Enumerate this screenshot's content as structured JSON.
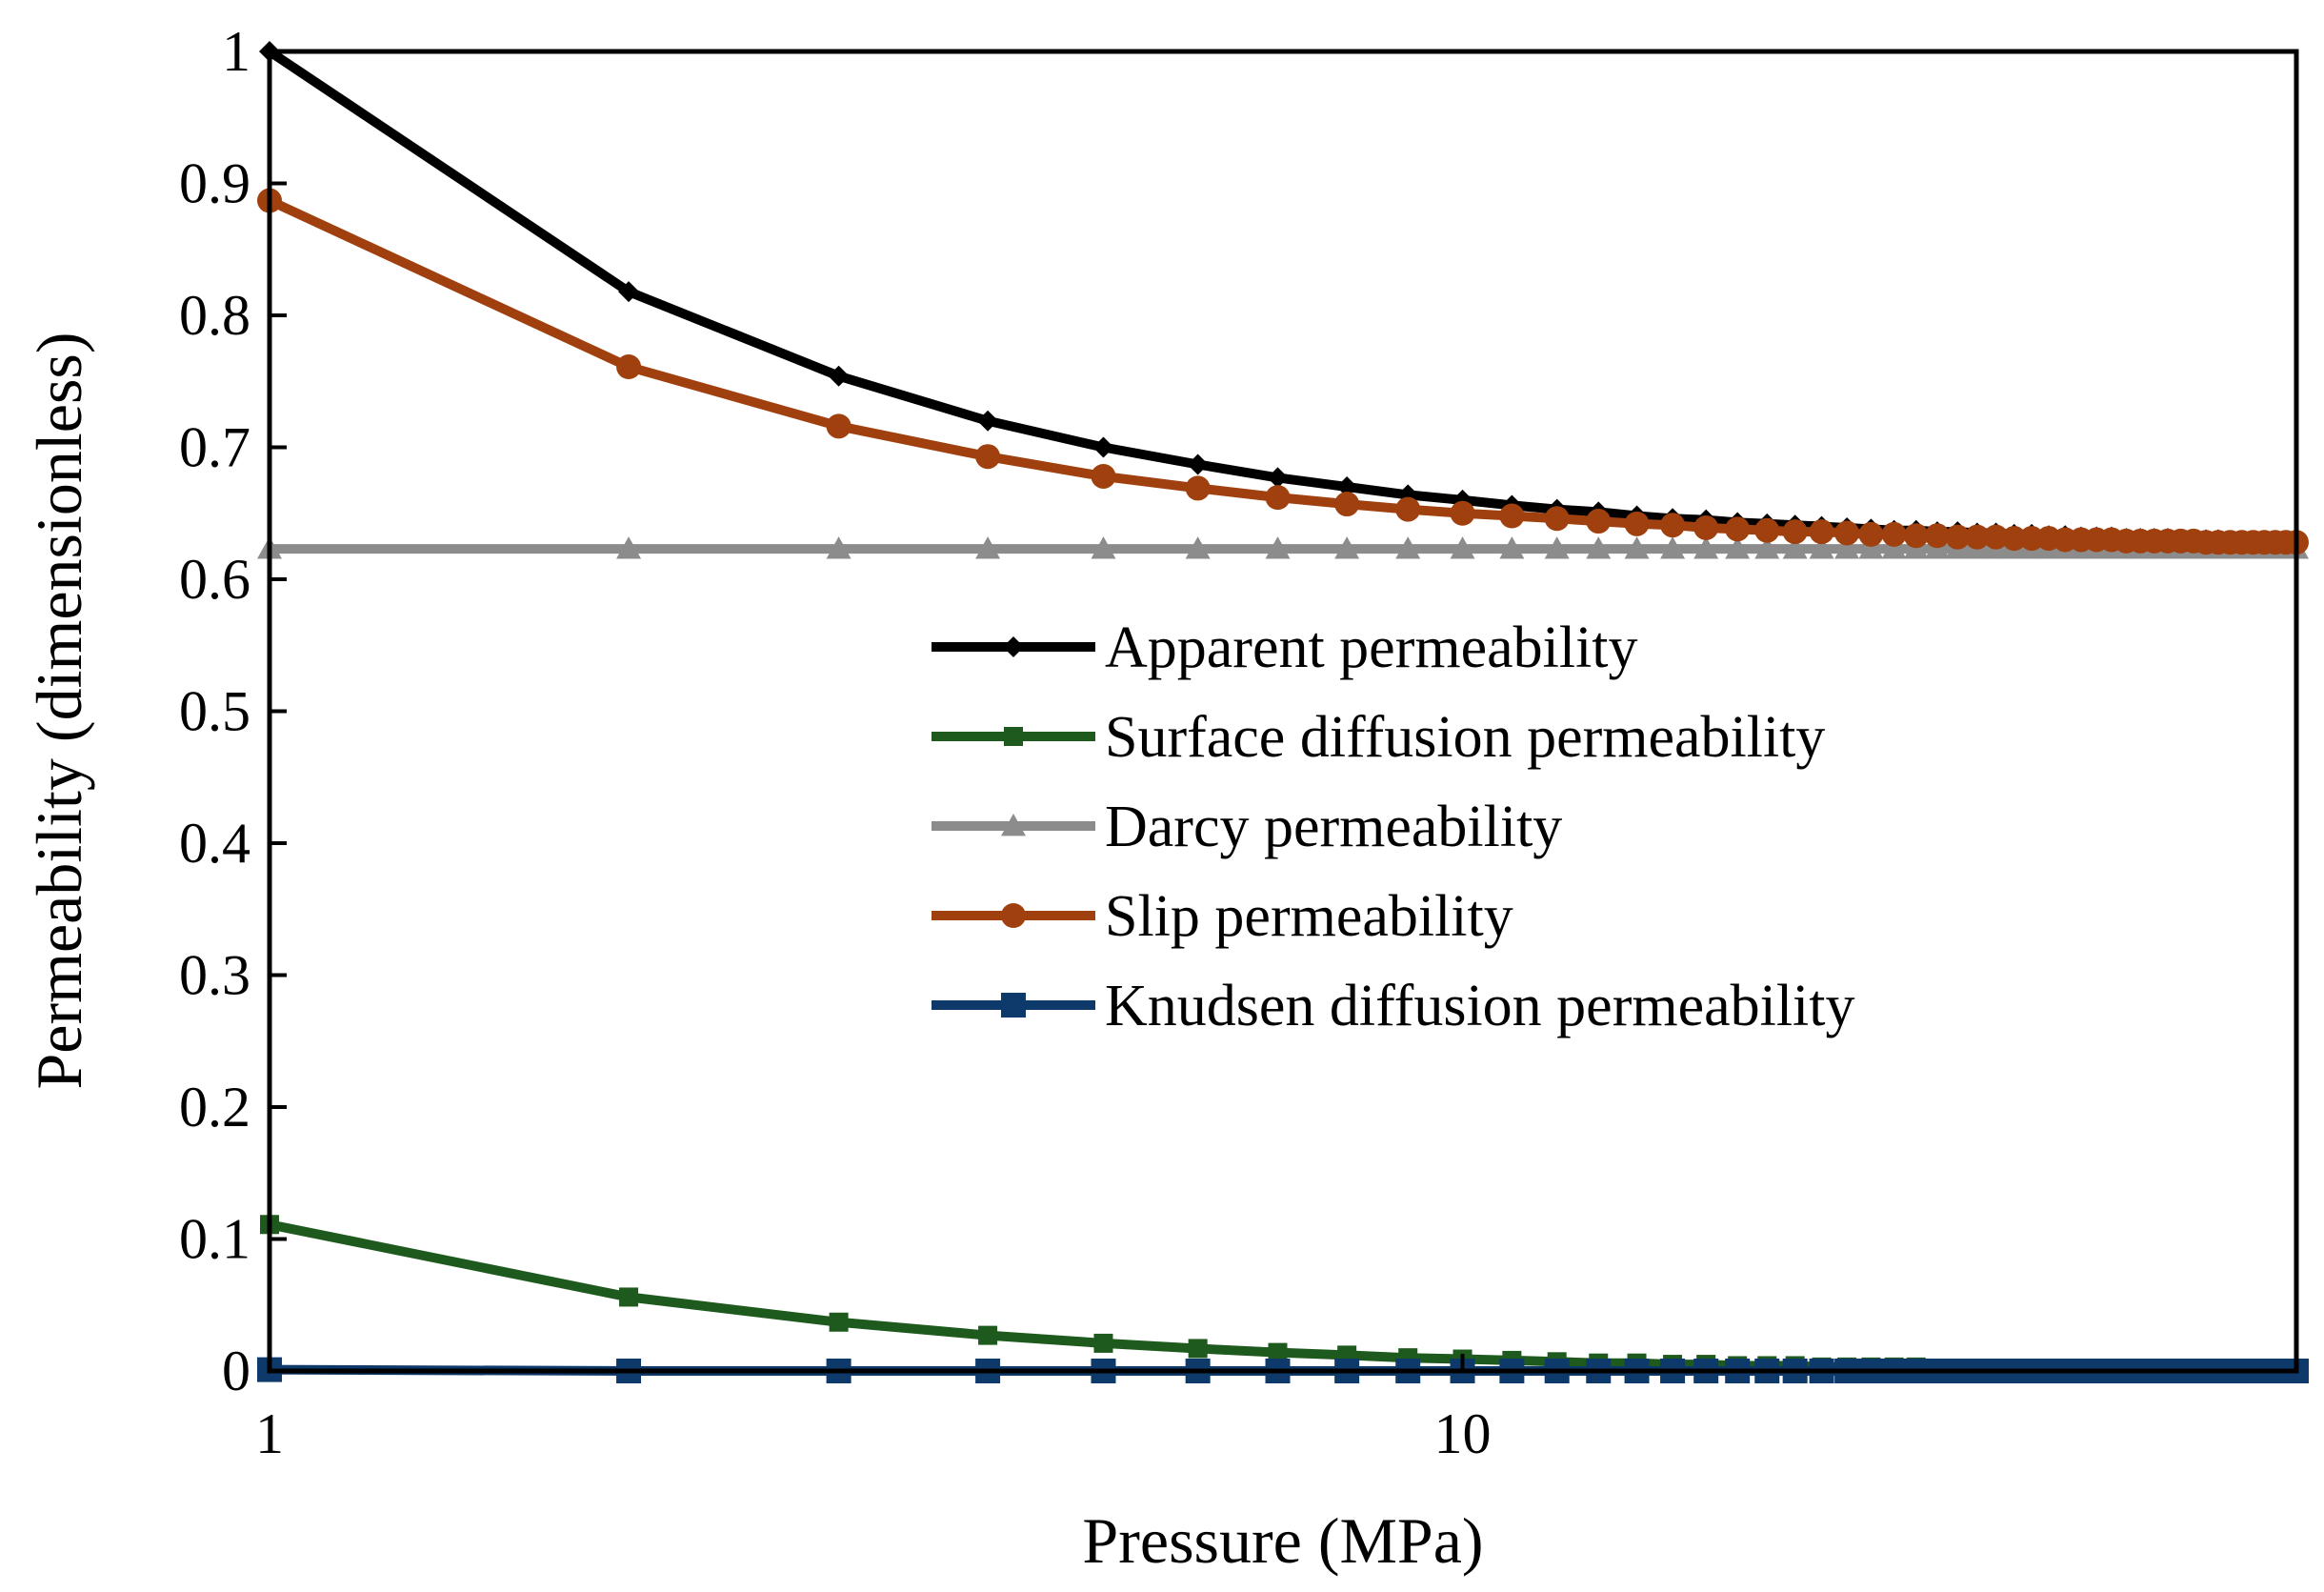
{
  "chart_data": {
    "type": "line",
    "title": "",
    "xlabel": "Pressure (MPa)",
    "ylabel": "Permeability (dimensionless)",
    "xscale": "log",
    "xlim": [
      1,
      50
    ],
    "ylim": [
      0,
      1
    ],
    "grid": false,
    "legend_position": "center-right",
    "x_ticks": [
      {
        "value": 1,
        "label": "1"
      },
      {
        "value": 10,
        "label": "10"
      }
    ],
    "y_ticks": [
      {
        "value": 0,
        "label": "0"
      },
      {
        "value": 0.1,
        "label": "0.1"
      },
      {
        "value": 0.2,
        "label": "0.2"
      },
      {
        "value": 0.3,
        "label": "0.3"
      },
      {
        "value": 0.4,
        "label": "0.4"
      },
      {
        "value": 0.5,
        "label": "0.5"
      },
      {
        "value": 0.6,
        "label": "0.6"
      },
      {
        "value": 0.7,
        "label": "0.7"
      },
      {
        "value": 0.8,
        "label": "0.8"
      },
      {
        "value": 0.9,
        "label": "0.9"
      },
      {
        "value": 1,
        "label": "1"
      }
    ],
    "x": [
      1,
      2,
      3,
      4,
      5,
      6,
      7,
      8,
      9,
      10,
      11,
      12,
      13,
      14,
      15,
      16,
      17,
      18,
      19,
      20,
      21,
      22,
      23,
      24,
      25,
      26,
      27,
      28,
      29,
      30,
      31,
      32,
      33,
      34,
      35,
      36,
      37,
      38,
      39,
      40,
      41,
      42,
      43,
      44,
      45,
      46,
      47,
      48,
      49,
      50
    ],
    "series": [
      {
        "name": "Apparent permeability",
        "color": "#000000",
        "marker": "diamond",
        "values": [
          1.0,
          0.818,
          0.754,
          0.72,
          0.7,
          0.687,
          0.677,
          0.67,
          0.664,
          0.66,
          0.656,
          0.653,
          0.651,
          0.648,
          0.646,
          0.645,
          0.643,
          0.642,
          0.641,
          0.64,
          0.639,
          0.638,
          0.637,
          0.637,
          0.636,
          0.636,
          0.635,
          0.635,
          0.634,
          0.634,
          0.633,
          0.633,
          0.632,
          0.632,
          0.632,
          0.631,
          0.631,
          0.631,
          0.631,
          0.63,
          0.63,
          0.63,
          0.63,
          0.629,
          0.629,
          0.629,
          0.629,
          0.629,
          0.629,
          0.628
        ]
      },
      {
        "name": "Surface diffusion permeability",
        "color": "#1E5A1E",
        "marker": "square",
        "values": [
          0.111,
          0.056,
          0.037,
          0.027,
          0.021,
          0.017,
          0.014,
          0.012,
          0.01,
          0.009,
          0.008,
          0.007,
          0.006,
          0.006,
          0.005,
          0.005,
          0.004,
          0.004,
          0.004,
          0.003,
          0.003,
          0.003,
          0.003,
          0.003,
          0.002,
          0.002,
          0.002,
          0.002,
          0.002,
          0.002,
          0.002,
          0.002,
          0.002,
          0.002,
          0.001,
          0.001,
          0.001,
          0.001,
          0.001,
          0.001,
          0.001,
          0.001,
          0.001,
          0.001,
          0.001,
          0.001,
          0.001,
          0.001,
          0.001,
          0.001
        ]
      },
      {
        "name": "Darcy permeability",
        "color": "#8C8C8C",
        "marker": "triangle",
        "values": [
          0.623,
          0.623,
          0.623,
          0.623,
          0.623,
          0.623,
          0.623,
          0.623,
          0.623,
          0.623,
          0.623,
          0.623,
          0.623,
          0.623,
          0.623,
          0.623,
          0.623,
          0.623,
          0.623,
          0.623,
          0.623,
          0.623,
          0.623,
          0.623,
          0.623,
          0.623,
          0.623,
          0.623,
          0.623,
          0.623,
          0.623,
          0.623,
          0.623,
          0.623,
          0.623,
          0.623,
          0.623,
          0.623,
          0.623,
          0.623,
          0.623,
          0.623,
          0.623,
          0.623,
          0.623,
          0.623,
          0.623,
          0.623,
          0.623,
          0.623
        ]
      },
      {
        "name": "Slip permeability",
        "color": "#A0400E",
        "marker": "circle",
        "values": [
          0.887,
          0.761,
          0.716,
          0.693,
          0.678,
          0.669,
          0.662,
          0.657,
          0.653,
          0.65,
          0.648,
          0.646,
          0.644,
          0.642,
          0.641,
          0.639,
          0.638,
          0.637,
          0.636,
          0.636,
          0.635,
          0.634,
          0.634,
          0.633,
          0.633,
          0.632,
          0.632,
          0.632,
          0.631,
          0.631,
          0.631,
          0.63,
          0.63,
          0.63,
          0.63,
          0.629,
          0.629,
          0.629,
          0.629,
          0.629,
          0.629,
          0.628,
          0.628,
          0.628,
          0.628,
          0.628,
          0.628,
          0.628,
          0.628,
          0.628
        ]
      },
      {
        "name": "Knudsen diffusion permeability",
        "color": "#0E3A6B",
        "marker": "square-large",
        "values": [
          0.001,
          0.0,
          0.0,
          0.0,
          0.0,
          0.0,
          0.0,
          0.0,
          0.0,
          0.0,
          0.0,
          0.0,
          0.0,
          0.0,
          0.0,
          0.0,
          0.0,
          0.0,
          0.0,
          0.0,
          0.0,
          0.0,
          0.0,
          0.0,
          0.0,
          0.0,
          0.0,
          0.0,
          0.0,
          0.0,
          0.0,
          0.0,
          0.0,
          0.0,
          0.0,
          0.0,
          0.0,
          0.0,
          0.0,
          0.0,
          0.0,
          0.0,
          0.0,
          0.0,
          0.0,
          0.0,
          0.0,
          0.0,
          0.0,
          0.0
        ]
      }
    ],
    "legend": [
      {
        "label": "Apparent permeability",
        "color": "#000000",
        "marker": "diamond"
      },
      {
        "label": "Surface diffusion permeability",
        "color": "#1E5A1E",
        "marker": "square"
      },
      {
        "label": "Darcy permeability",
        "color": "#8C8C8C",
        "marker": "triangle"
      },
      {
        "label": "Slip permeability",
        "color": "#A0400E",
        "marker": "circle"
      },
      {
        "label": "Knudsen diffusion permeability",
        "color": "#0E3A6B",
        "marker": "square-large"
      }
    ]
  }
}
